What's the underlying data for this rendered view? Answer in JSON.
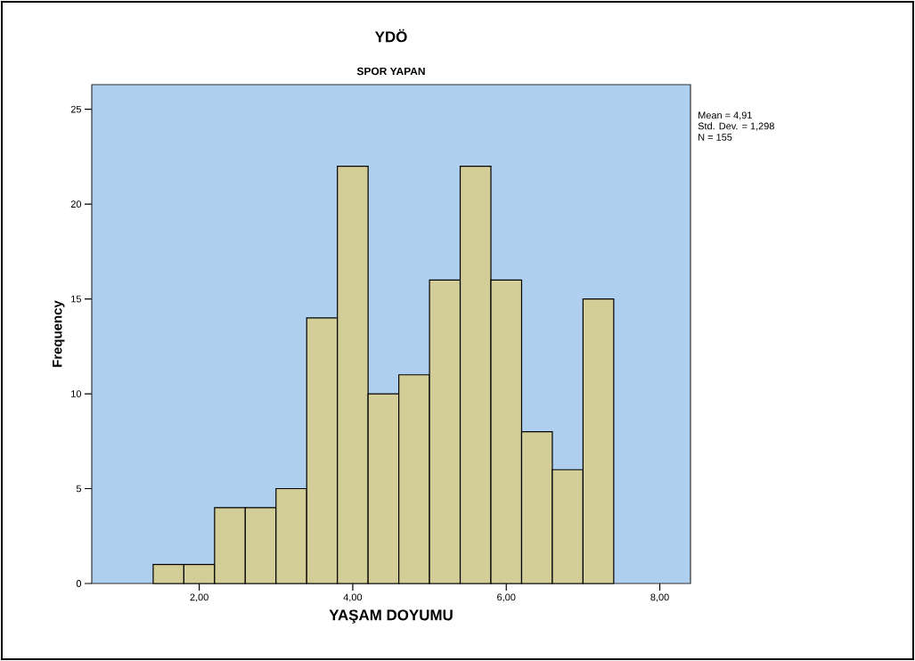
{
  "chart_data": {
    "type": "histogram",
    "title": "YDÖ",
    "subtitle": "SPOR YAPAN",
    "xlabel": "YAŞAM DOYUMU",
    "ylabel": "Frequency",
    "bins": [
      1.4,
      1.8,
      2.2,
      2.6,
      3.0,
      3.4,
      3.8,
      4.2,
      4.6,
      5.0,
      5.4,
      5.8,
      6.2,
      6.6,
      7.0,
      7.4
    ],
    "values": [
      1,
      1,
      4,
      4,
      5,
      14,
      22,
      10,
      11,
      16,
      22,
      16,
      8,
      6,
      15
    ],
    "color": "#d3ce97",
    "xlim": [
      0.6,
      8.4
    ],
    "ylim": [
      0,
      26.3
    ],
    "xticks": [
      {
        "value": 2,
        "label": "2,00"
      },
      {
        "value": 4,
        "label": "4,00"
      },
      {
        "value": 6,
        "label": "6,00"
      },
      {
        "value": 8,
        "label": "8,00"
      }
    ],
    "yticks": [
      0,
      5,
      10,
      15,
      20,
      25
    ],
    "annotations": [
      "Mean = 4,91",
      "Std. Dev. = 1,298",
      "N = 155"
    ]
  }
}
